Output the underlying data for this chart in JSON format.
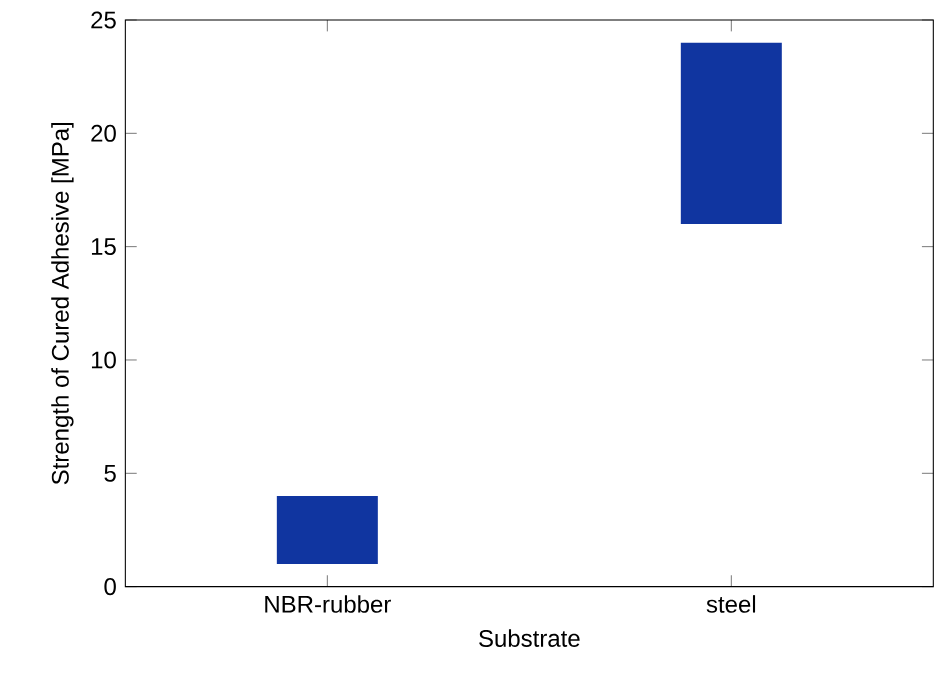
{
  "chart_data": {
    "type": "bar",
    "xlabel": "Substrate",
    "ylabel": "Strength of Cured Adhesive [MPa]",
    "categories": [
      "NBR-rubber",
      "steel"
    ],
    "values": [
      3,
      8
    ],
    "base": [
      1,
      16
    ],
    "color": "#1035a0",
    "ylim": [
      0,
      25
    ],
    "yticks": [
      0,
      5,
      10,
      15,
      20,
      25
    ]
  }
}
